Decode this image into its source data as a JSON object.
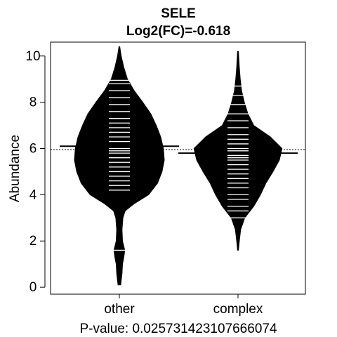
{
  "chart_data": {
    "type": "beanplot",
    "title": "SELE",
    "subtitle": "Log2(FC)=-0.618",
    "ylabel": "Abundance",
    "xlabel": "P-value: 0.025731423107666074",
    "ylim": [
      -0.3,
      10.6
    ],
    "yticks": [
      0,
      2,
      4,
      6,
      8,
      10
    ],
    "categories": [
      "other",
      "complex"
    ],
    "overall_mean": 5.95,
    "series": [
      {
        "name": "other",
        "mean": 6.1,
        "density": [
          [
            0.1,
            0.03
          ],
          [
            0.6,
            0.06
          ],
          [
            1.0,
            0.07
          ],
          [
            1.3,
            0.1
          ],
          [
            1.6,
            0.12
          ],
          [
            2.0,
            0.07
          ],
          [
            2.5,
            0.06
          ],
          [
            3.0,
            0.08
          ],
          [
            3.3,
            0.13
          ],
          [
            3.6,
            0.32
          ],
          [
            4.0,
            0.65
          ],
          [
            4.5,
            0.85
          ],
          [
            5.0,
            0.95
          ],
          [
            5.5,
            1.0
          ],
          [
            6.0,
            0.98
          ],
          [
            6.5,
            0.92
          ],
          [
            7.0,
            0.82
          ],
          [
            7.5,
            0.7
          ],
          [
            8.0,
            0.52
          ],
          [
            8.5,
            0.33
          ],
          [
            9.0,
            0.18
          ],
          [
            9.5,
            0.1
          ],
          [
            10.0,
            0.04
          ],
          [
            10.4,
            0.01
          ]
        ],
        "points": [
          1.6,
          4.2,
          4.4,
          4.6,
          4.8,
          5.0,
          5.2,
          5.4,
          5.6,
          5.8,
          5.9,
          6.0,
          6.1,
          6.3,
          6.5,
          6.7,
          6.9,
          7.1,
          7.3,
          7.6,
          7.9,
          8.2,
          8.5,
          8.8,
          8.95
        ]
      },
      {
        "name": "complex",
        "mean": 5.8,
        "density": [
          [
            1.6,
            0.01
          ],
          [
            2.0,
            0.03
          ],
          [
            2.5,
            0.06
          ],
          [
            3.0,
            0.15
          ],
          [
            3.5,
            0.35
          ],
          [
            4.0,
            0.5
          ],
          [
            4.5,
            0.62
          ],
          [
            5.0,
            0.78
          ],
          [
            5.5,
            0.92
          ],
          [
            6.0,
            0.98
          ],
          [
            6.5,
            0.72
          ],
          [
            7.0,
            0.35
          ],
          [
            7.5,
            0.22
          ],
          [
            8.0,
            0.14
          ],
          [
            8.5,
            0.08
          ],
          [
            9.0,
            0.05
          ],
          [
            9.5,
            0.03
          ],
          [
            10.2,
            0.01
          ]
        ],
        "points": [
          3.0,
          3.3,
          3.5,
          3.8,
          4.0,
          4.3,
          4.5,
          4.7,
          4.9,
          5.1,
          5.3,
          5.5,
          5.6,
          5.7,
          5.8,
          5.9,
          6.0,
          6.2,
          6.4,
          6.6,
          6.9,
          7.2,
          7.5,
          7.9,
          8.3,
          8.7
        ]
      }
    ]
  }
}
